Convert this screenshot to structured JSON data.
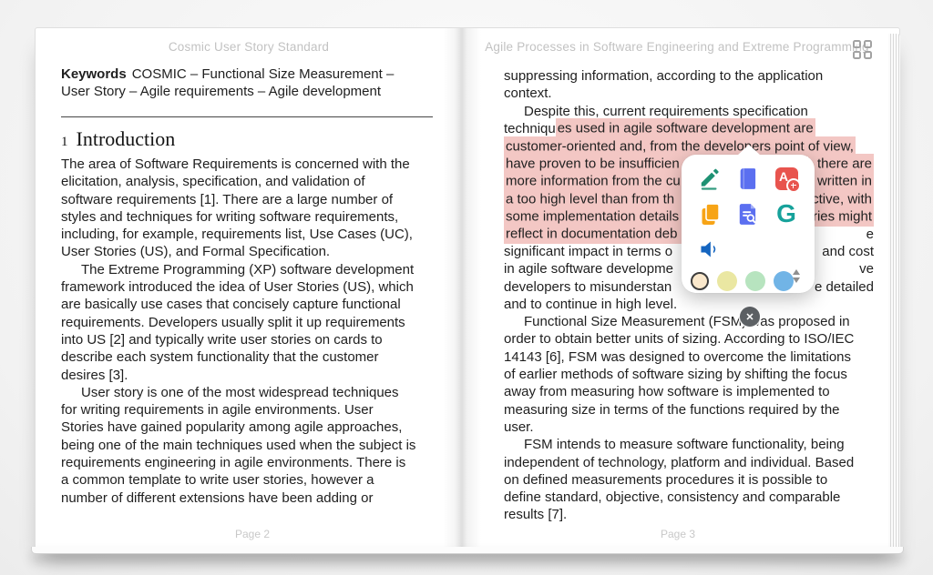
{
  "colors": {
    "selection_highlight": "#f3c7c4",
    "page_background": "#ffffff",
    "body_text": "#202020",
    "header_text": "#c2c2c2"
  },
  "left_page": {
    "header": "Cosmic User Story Standard",
    "footer": "Page 2",
    "keywords": {
      "label": "Keywords",
      "line1_rest": "COSMIC – Functional Size Measurement –",
      "line2": "User Story – Agile requirements – Agile development"
    },
    "heading": {
      "number": "1",
      "text": "Introduction"
    },
    "paragraphs": [
      {
        "indent": false,
        "lines": [
          "The area of Software Requirements is concerned with the",
          "elicitation, analysis, specification, and validation of",
          "software requirements [1]. There are a large number of",
          "styles and techniques for writing software requirements,",
          "including, for example, requirements list, Use Cases (UC),",
          "User Stories (US), and Formal Specification."
        ]
      },
      {
        "indent": true,
        "lines": [
          "The Extreme Programming (XP) software development",
          "framework introduced the idea of User Stories (US), which",
          "are basically use cases that concisely capture functional",
          "requirements. Developers usually split it up requirements",
          "into US [2] and typically write user stories on cards to",
          "describe each system functionality that the customer",
          "desires [3]."
        ]
      },
      {
        "indent": true,
        "lines": [
          "User story is one of the most widespread techniques",
          "for writing requirements in agile environments. User",
          "Stories have gained popularity among agile approaches,",
          "being one of the main techniques used when the subject is",
          "requirements engineering in agile environments. There is",
          "a common template to write user stories, however a",
          "number of different extensions have been adding or"
        ]
      }
    ]
  },
  "right_page": {
    "header": "Agile Processes in Software Engineering and Extreme Programming",
    "footer": "Page 3",
    "corner_icon": "grid-view-icon",
    "lines": [
      {
        "s": [
          {
            "t": "suppressing information, according to the application"
          }
        ]
      },
      {
        "s": [
          {
            "t": "context."
          }
        ]
      },
      {
        "ind": 1,
        "s": [
          {
            "t": "Despite this, current requirements specification"
          }
        ]
      },
      {
        "s": [
          {
            "t": "techniqu"
          },
          {
            "t": "es used in agile software development are",
            "h": 1
          }
        ]
      },
      {
        "s": [
          {
            "t": "customer-oriented and, from the developers point of view,",
            "h": 1
          }
        ]
      },
      {
        "L": [
          {
            "t": "have proven to be insufficien",
            "h": 1,
            "cl": 1
          }
        ],
        "R": [
          {
            "t": "there are",
            "h": 1,
            "cr": 1
          }
        ]
      },
      {
        "L": [
          {
            "t": "more information from the cu",
            "h": 1,
            "cl": 1
          }
        ],
        "R": [
          {
            "t": "written in",
            "h": 1,
            "cr": 1
          }
        ]
      },
      {
        "L": [
          {
            "t": "a too high level than from th",
            "h": 1,
            "cl": 1
          }
        ],
        "R": [
          {
            "t": "ctive, with",
            "h": 1,
            "cr": 1
          }
        ]
      },
      {
        "L": [
          {
            "t": "some implementation details",
            "h": 1,
            "cl": 1
          }
        ],
        "R": [
          {
            "t": "ries might",
            "h": 1,
            "cr": 1
          }
        ]
      },
      {
        "L": [
          {
            "t": "reflect in documentation deb",
            "h": 1,
            "cl": 1
          }
        ],
        "R": [
          {
            "t": "e"
          }
        ]
      },
      {
        "L": [
          {
            "t": "significant impact in terms o"
          }
        ],
        "R": [
          {
            "t": "and cost"
          }
        ]
      },
      {
        "L": [
          {
            "t": "in agile software developme"
          }
        ],
        "R": [
          {
            "t": "ve"
          }
        ]
      },
      {
        "L": [
          {
            "t": "developers to misunderstan"
          }
        ],
        "R": [
          {
            "t": "e detailed"
          }
        ]
      },
      {
        "s": [
          {
            "t": "and to continue in high level."
          }
        ]
      },
      {
        "ind": 1,
        "s": [
          {
            "t": "Functional Size Measurement (FSM) was proposed in"
          }
        ]
      },
      {
        "s": [
          {
            "t": "order to obtain better units of sizing. According to ISO/IEC"
          }
        ]
      },
      {
        "s": [
          {
            "t": "14143 [6], FSM was designed to overcome the limitations"
          }
        ]
      },
      {
        "s": [
          {
            "t": "of earlier methods of software sizing by shifting the focus"
          }
        ]
      },
      {
        "s": [
          {
            "t": "away from measuring how software is implemented to"
          }
        ]
      },
      {
        "s": [
          {
            "t": "measuring size in terms of the functions required by the"
          }
        ]
      },
      {
        "s": [
          {
            "t": "user."
          }
        ]
      },
      {
        "ind": 1,
        "s": [
          {
            "t": "FSM intends to measure software functionality, being"
          }
        ]
      },
      {
        "s": [
          {
            "t": "independent of technology, platform and individual. Based"
          }
        ]
      },
      {
        "s": [
          {
            "t": "on defined measurements procedures it is possible to"
          }
        ]
      },
      {
        "s": [
          {
            "t": "define standard, objective, consistency and comparable"
          }
        ]
      },
      {
        "s": [
          {
            "t": "results [7]."
          }
        ]
      }
    ]
  },
  "popup": {
    "buttons": [
      {
        "id": "highlight-pen",
        "icon": "pen-icon",
        "color": "#1e9173"
      },
      {
        "id": "dictionary",
        "icon": "book-icon",
        "color": "#5b6ff0"
      },
      {
        "id": "translate",
        "icon": "translate-a-plus-icon",
        "color": "#e8544e"
      },
      {
        "id": "copy",
        "icon": "copy-icon",
        "color": "#f7a416"
      },
      {
        "id": "search-in-document",
        "icon": "document-search-icon",
        "color": "#5b6ff0"
      },
      {
        "id": "google-search",
        "icon": "google-g-icon",
        "color": "#17a29b"
      },
      {
        "id": "speak-aloud",
        "icon": "speaker-icon",
        "color": "#1565c0"
      }
    ],
    "google_letter": "G",
    "translate_letter": "A",
    "close_glyph": "✕",
    "swatches": [
      {
        "name": "cream",
        "color": "#fae8cc",
        "selected": true
      },
      {
        "name": "yellow",
        "color": "#eae7a2",
        "selected": false
      },
      {
        "name": "green",
        "color": "#b7e4bf",
        "selected": false
      },
      {
        "name": "blue",
        "color": "#71b4e6",
        "selected": false
      }
    ],
    "spinner_icon": "up-down-arrows-icon"
  }
}
